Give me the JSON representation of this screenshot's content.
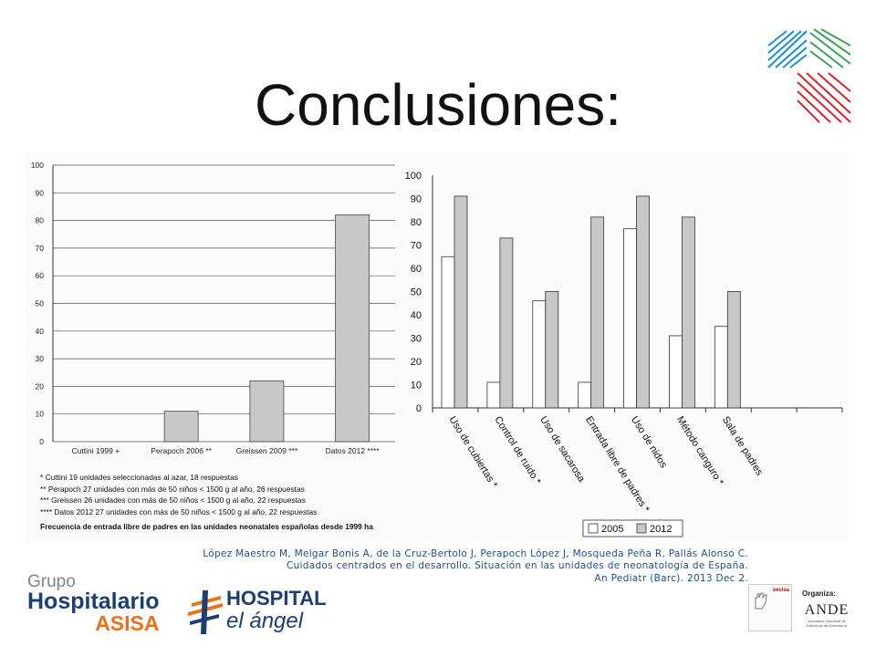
{
  "slide": {
    "title": "Conclusiones:"
  },
  "colors": {
    "bar_gray": "#c8c8c8",
    "bar_white": "#ffffff",
    "axis": "#333333",
    "grid": "#555555",
    "reference_text": "#1f4e8c",
    "asisa_blue": "#1c3f73",
    "asisa_orange": "#e5731f",
    "logo_red": "#d22630",
    "logo_blue": "#1b8ed0"
  },
  "chart_data": [
    {
      "type": "bar",
      "categories": [
        "Cuttini 1999 +",
        "Perapoch 2006 **",
        "Greissen 2009 ***",
        "Datos 2012 ****"
      ],
      "values": [
        0,
        11,
        22,
        82
      ],
      "ylim": [
        0,
        100
      ],
      "yticks": [
        0,
        10,
        20,
        30,
        40,
        50,
        60,
        70,
        80,
        90,
        100
      ],
      "grid": true,
      "notes": [
        "* Cuttini 19 unidades seleccionadas al azar, 18 respuestas",
        "** Perapoch 27 unidades con más de 50 niños < 1500 g al año, 26 respuestas",
        "*** Greissen 26 unidades con más de 50 niños < 1500 g al año, 22 respuestas",
        "**** Datos 2012 27 unidades con más de 50 niños < 1500 g al año, 22 respuestas"
      ],
      "caption": "Frecuencia de entrada libre de padres en las unidades neonatales españolas desde 1999 ha"
    },
    {
      "type": "bar",
      "categories": [
        "Uso de cubiertas *",
        "Control de ruido *",
        "Uso de sacarosa",
        "Entrada libre de padres *",
        "Uso de nidos",
        "Método canguro *",
        "Sala de padres"
      ],
      "series": [
        {
          "name": "2005",
          "values": [
            65,
            11,
            46,
            11,
            77,
            31,
            35
          ]
        },
        {
          "name": "2012",
          "values": [
            91,
            73,
            50,
            82,
            91,
            82,
            50
          ]
        }
      ],
      "ylim": [
        0,
        100
      ],
      "yticks": [
        0,
        10,
        20,
        30,
        40,
        50,
        60,
        70,
        80,
        90,
        100
      ],
      "grid": false,
      "legend_position": "bottom-right"
    }
  ],
  "reference": {
    "line1": "López Maestro M, Melgar Bonis A, de la Cruz-Bertolo J, Perapoch López J, Mosqueda Peña R, Pallás Alonso C.",
    "line2": "Cuidados centrados en el desarrollo. Situación en las unidades de neonatología de España.",
    "line3": "An Pediatr (Barc). 2013 Dec 2."
  },
  "logos": {
    "asisa": {
      "line1": "Grupo",
      "line2": "Hospitalario",
      "line3": "ASISA"
    },
    "hospital": {
      "line1": "HOSPITAL",
      "line2": "el ángel"
    },
    "organiza": "Organiza:",
    "secisa": "secisa",
    "anece": "ANDE",
    "anece_sub": "Asociación Nacional de Directivos de Enfermería",
    "corner_icon": "palm-leaf-logo-icon"
  }
}
